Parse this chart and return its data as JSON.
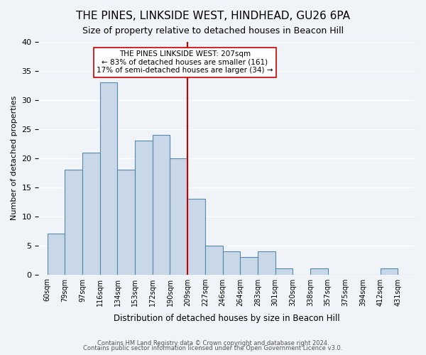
{
  "title": "THE PINES, LINKSIDE WEST, HINDHEAD, GU26 6PA",
  "subtitle": "Size of property relative to detached houses in Beacon Hill",
  "xlabel": "Distribution of detached houses by size in Beacon Hill",
  "ylabel": "Number of detached properties",
  "bin_labels": [
    "60sqm",
    "79sqm",
    "97sqm",
    "116sqm",
    "134sqm",
    "153sqm",
    "172sqm",
    "190sqm",
    "209sqm",
    "227sqm",
    "246sqm",
    "264sqm",
    "283sqm",
    "301sqm",
    "320sqm",
    "338sqm",
    "357sqm",
    "375sqm",
    "394sqm",
    "412sqm",
    "431sqm"
  ],
  "bar_heights": [
    7,
    18,
    21,
    33,
    18,
    23,
    24,
    20,
    13,
    5,
    4,
    3,
    4,
    1,
    0,
    1,
    0,
    0,
    0,
    1,
    0
  ],
  "bar_color": "#c8d8e8",
  "bar_edge_color": "#5588aa",
  "vline_x": 8,
  "vline_color": "#cc0000",
  "annotation_title": "THE PINES LINKSIDE WEST: 207sqm",
  "annotation_line1": "← 83% of detached houses are smaller (161)",
  "annotation_line2": "17% of semi-detached houses are larger (34) →",
  "annotation_box_color": "#ffffff",
  "annotation_box_edge": "#cc0000",
  "ylim": [
    0,
    40
  ],
  "yticks": [
    0,
    5,
    10,
    15,
    20,
    25,
    30,
    35,
    40
  ],
  "footer1": "Contains HM Land Registry data © Crown copyright and database right 2024.",
  "footer2": "Contains public sector information licensed under the Open Government Licence v3.0.",
  "background_color": "#f0f4f8",
  "grid_color": "#ffffff"
}
